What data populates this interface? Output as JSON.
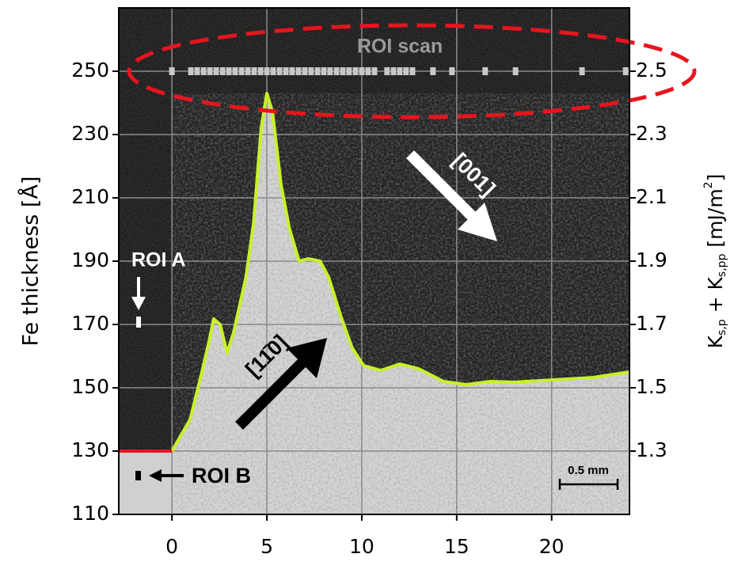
{
  "chart_data": {
    "type": "line",
    "ylabel": "Fe thickness [Å]",
    "y2label_parts": [
      "K",
      "s,p",
      " + K",
      "s,pp",
      " [mJ/m",
      "2",
      "]"
    ],
    "xlim": [
      -2.8,
      24.1
    ],
    "xticks": [
      0,
      5,
      10,
      15,
      20
    ],
    "ylim": [
      110,
      270
    ],
    "yticks": [
      110,
      130,
      150,
      170,
      190,
      210,
      230,
      250
    ],
    "y2lim": [
      1.1,
      2.7
    ],
    "y2ticks": [
      1.3,
      1.5,
      1.7,
      1.9,
      2.1,
      2.3,
      2.5
    ],
    "grid": true,
    "series": [
      {
        "color": "#c8f02a",
        "x": [
          0,
          0.96,
          1.58,
          1.92,
          2.2,
          2.54,
          2.9,
          3.25,
          3.9,
          4.3,
          4.7,
          5.0,
          5.3,
          5.75,
          6.2,
          6.7,
          7.2,
          7.8,
          8.25,
          8.9,
          9.5,
          10.1,
          11,
          12,
          13,
          14.3,
          15.5,
          16.8,
          18,
          20.1,
          22.2,
          24.1
        ],
        "values": [
          130,
          140,
          155,
          163.75,
          171.75,
          170,
          161,
          167.5,
          185,
          202,
          232,
          243,
          237,
          214,
          200,
          190,
          190.75,
          190,
          185,
          172.5,
          162.5,
          157,
          155.5,
          157.5,
          156,
          152,
          151,
          152,
          151.75,
          152.5,
          153.25,
          155
        ]
      },
      {
        "color": "#e8141e",
        "x": [
          -2.8,
          0
        ],
        "values": [
          130,
          130
        ]
      }
    ],
    "scan": {
      "color": "#c8c8c8",
      "x": [
        0,
        1,
        1.33,
        1.67,
        2,
        2.33,
        2.67,
        3,
        3.33,
        3.67,
        4,
        4.33,
        4.67,
        5,
        5.33,
        5.67,
        6,
        6.33,
        6.67,
        7,
        7.33,
        7.67,
        8,
        8.33,
        8.67,
        9,
        9.33,
        9.67,
        10,
        10.33,
        10.67,
        11.33,
        11.67,
        12,
        12.33,
        12.67,
        13.75,
        14.75,
        16.5,
        18.1,
        21.6,
        23.9
      ],
      "values": [
        250,
        250,
        250,
        250,
        250,
        250,
        250,
        250,
        250,
        250,
        250,
        250,
        250,
        250,
        250,
        250,
        250,
        250,
        250,
        250,
        250,
        250,
        250,
        250,
        250,
        250,
        250,
        250,
        250,
        250,
        250,
        250,
        250,
        250,
        250,
        250,
        250,
        250,
        250,
        250,
        250,
        250
      ]
    },
    "annotations": {
      "roi_scan": "ROI scan",
      "roi_a": "ROI A",
      "roi_b": "ROI B",
      "dir_001": "[001]",
      "dir_110": "[11̄0]",
      "scale_bar": "0.5 mm"
    }
  }
}
